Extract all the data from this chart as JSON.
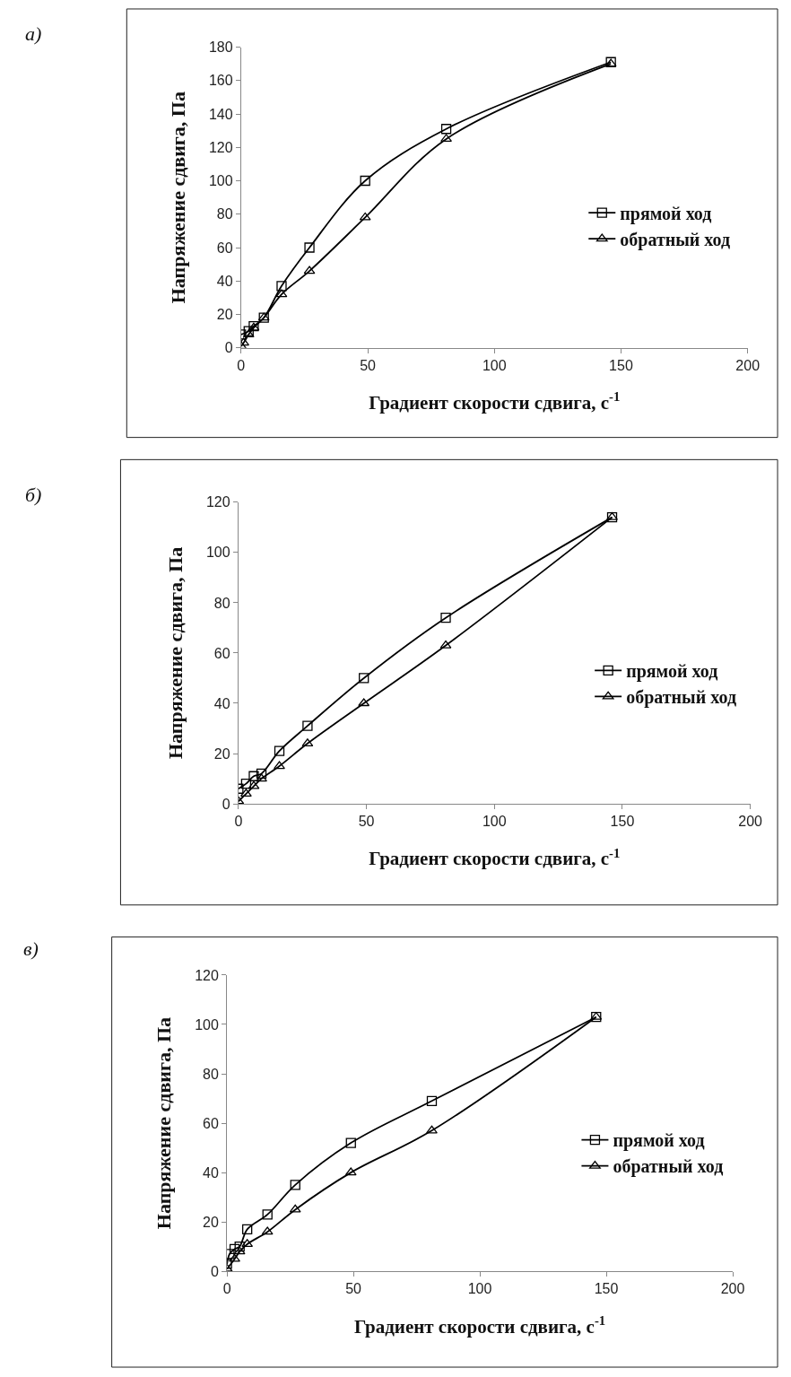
{
  "chart_data": [
    {
      "type": "line",
      "annotations": [
        "а)"
      ],
      "xlabel": "Градиент скорости сдвига, с$^{-1}$",
      "ylabel": "Напряжение сдвига, Па",
      "xlim": [
        0,
        200
      ],
      "xticks": [
        0,
        50,
        100,
        150,
        200
      ],
      "ylim": [
        0,
        180
      ],
      "yticks": [
        0,
        20,
        40,
        60,
        80,
        100,
        120,
        140,
        160,
        180
      ],
      "legend": "right",
      "series": [
        {
          "name": "прямой ход",
          "color": "#000000",
          "marker": "square",
          "x": [
            0,
            3,
            5,
            9,
            16,
            27,
            49,
            81,
            146
          ],
          "values": [
            8,
            10,
            13,
            18,
            37,
            60,
            100,
            131,
            171
          ]
        },
        {
          "name": "обратный ход",
          "color": "#000000",
          "marker": "triangle",
          "x": [
            0,
            1,
            3,
            5,
            9,
            16,
            27,
            49,
            81,
            146
          ],
          "values": [
            1,
            3,
            8,
            12,
            18,
            32,
            46,
            78,
            125,
            170
          ]
        }
      ]
    },
    {
      "type": "line",
      "annotations": [
        "б)"
      ],
      "xlabel": "Градиент скорости сдвига, с$^{-1}$",
      "ylabel": "Напряжение сдвига, Па",
      "xlim": [
        0,
        200
      ],
      "xticks": [
        0,
        50,
        100,
        150,
        200
      ],
      "ylim": [
        0,
        120
      ],
      "yticks": [
        0,
        20,
        40,
        60,
        80,
        100,
        120
      ],
      "legend": "right",
      "series": [
        {
          "name": "прямой ход",
          "color": "#000000",
          "marker": "square",
          "x": [
            0,
            3,
            6,
            9,
            16,
            27,
            49,
            81,
            146
          ],
          "values": [
            6,
            8,
            11,
            12,
            21,
            31,
            50,
            74,
            114
          ]
        },
        {
          "name": "обратный ход",
          "color": "#000000",
          "marker": "triangle",
          "x": [
            0,
            3,
            6,
            9,
            16,
            27,
            49,
            81,
            146
          ],
          "values": [
            1,
            4,
            7,
            10,
            15,
            24,
            40,
            63,
            114
          ]
        }
      ]
    },
    {
      "type": "line",
      "annotations": [
        "в)"
      ],
      "xlabel": "Градиент скорости сдвига, с$^{-1}$",
      "ylabel": "Напряжение сдвига, Па",
      "xlim": [
        0,
        200
      ],
      "xticks": [
        0,
        50,
        100,
        150,
        200
      ],
      "ylim": [
        0,
        120
      ],
      "yticks": [
        0,
        20,
        40,
        60,
        80,
        100,
        120
      ],
      "legend": "right",
      "series": [
        {
          "name": "прямой ход",
          "color": "#000000",
          "marker": "square",
          "x": [
            0,
            1,
            3,
            5,
            8,
            16,
            27,
            49,
            81,
            146
          ],
          "values": [
            3,
            7,
            9,
            10,
            17,
            23,
            35,
            52,
            69,
            103
          ]
        },
        {
          "name": "обратный ход",
          "color": "#000000",
          "marker": "triangle",
          "x": [
            0,
            3,
            5,
            8,
            16,
            27,
            49,
            81,
            146
          ],
          "values": [
            1,
            5,
            8,
            11,
            16,
            25,
            40,
            57,
            103
          ]
        }
      ]
    }
  ]
}
